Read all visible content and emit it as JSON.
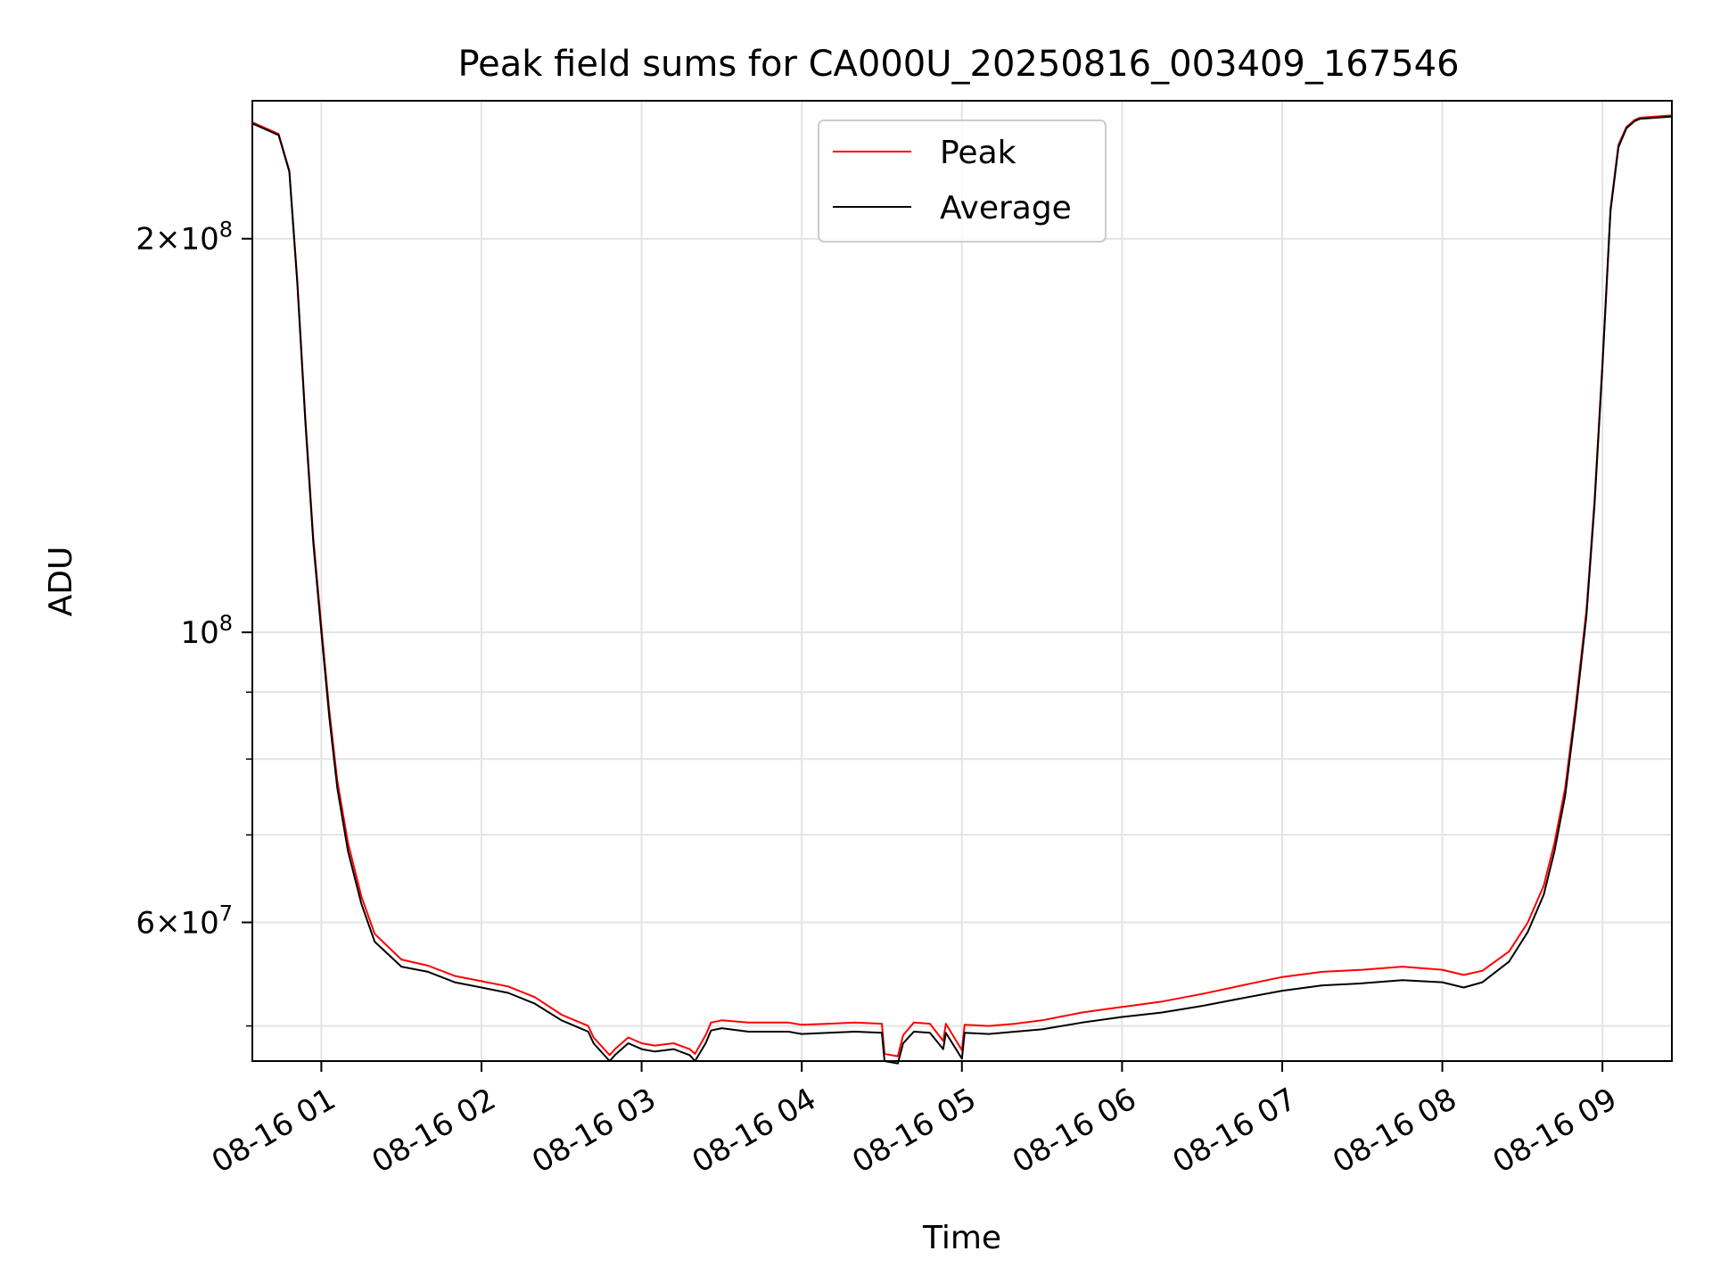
{
  "chart_data": {
    "type": "line",
    "title": "Peak field sums for CA000U_20250816_003409_167546",
    "xlabel": "Time",
    "ylabel": "ADU",
    "x_axis": {
      "type": "time",
      "range": [
        "2025-08-16T00:34:09",
        "2025-08-16T09:26:00"
      ],
      "ticks": [
        {
          "time": "2025-08-16T01:00",
          "label": "08-16 01"
        },
        {
          "time": "2025-08-16T02:00",
          "label": "08-16 02"
        },
        {
          "time": "2025-08-16T03:00",
          "label": "08-16 03"
        },
        {
          "time": "2025-08-16T04:00",
          "label": "08-16 04"
        },
        {
          "time": "2025-08-16T05:00",
          "label": "08-16 05"
        },
        {
          "time": "2025-08-16T06:00",
          "label": "08-16 06"
        },
        {
          "time": "2025-08-16T07:00",
          "label": "08-16 07"
        },
        {
          "time": "2025-08-16T08:00",
          "label": "08-16 08"
        },
        {
          "time": "2025-08-16T09:00",
          "label": "08-16 09"
        }
      ]
    },
    "y_axis": {
      "scale": "log",
      "range": [
        47000000,
        255000000
      ],
      "major_ticks": [
        {
          "value": 60000000,
          "mantissa": "6",
          "exponent": "7"
        },
        {
          "value": 100000000,
          "mantissa": "",
          "exponent": "8"
        },
        {
          "value": 200000000,
          "mantissa": "2",
          "exponent": "8"
        }
      ],
      "minor_ticks": [
        50000000,
        70000000,
        80000000,
        90000000,
        300000000
      ]
    },
    "grid": true,
    "legend": {
      "placement": "top-center",
      "entries": [
        {
          "label": "Peak",
          "color": "#ff0000"
        },
        {
          "label": "Average",
          "color": "#000000"
        }
      ]
    },
    "series": [
      {
        "name": "Average",
        "color": "#000000",
        "x": [
          "2025-08-16T00:34:09",
          "2025-08-16T00:44",
          "2025-08-16T00:48",
          "2025-08-16T00:51",
          "2025-08-16T00:54",
          "2025-08-16T00:57",
          "2025-08-16T01:00",
          "2025-08-16T01:03",
          "2025-08-16T01:06",
          "2025-08-16T01:10",
          "2025-08-16T01:15",
          "2025-08-16T01:20",
          "2025-08-16T01:30",
          "2025-08-16T01:40",
          "2025-08-16T01:50",
          "2025-08-16T02:00",
          "2025-08-16T02:10",
          "2025-08-16T02:20",
          "2025-08-16T02:30",
          "2025-08-16T02:40",
          "2025-08-16T02:42",
          "2025-08-16T02:48",
          "2025-08-16T02:50",
          "2025-08-16T02:55",
          "2025-08-16T03:00",
          "2025-08-16T03:05",
          "2025-08-16T03:12",
          "2025-08-16T03:18",
          "2025-08-16T03:20",
          "2025-08-16T03:24",
          "2025-08-16T03:26",
          "2025-08-16T03:30",
          "2025-08-16T03:40",
          "2025-08-16T03:55",
          "2025-08-16T04:00",
          "2025-08-16T04:10",
          "2025-08-16T04:20",
          "2025-08-16T04:30",
          "2025-08-16T04:31",
          "2025-08-16T04:36",
          "2025-08-16T04:38",
          "2025-08-16T04:42",
          "2025-08-16T04:48",
          "2025-08-16T04:53",
          "2025-08-16T04:54",
          "2025-08-16T05:00",
          "2025-08-16T05:01",
          "2025-08-16T05:10",
          "2025-08-16T05:20",
          "2025-08-16T05:30",
          "2025-08-16T05:45",
          "2025-08-16T06:00",
          "2025-08-16T06:15",
          "2025-08-16T06:30",
          "2025-08-16T06:45",
          "2025-08-16T07:00",
          "2025-08-16T07:15",
          "2025-08-16T07:30",
          "2025-08-16T07:45",
          "2025-08-16T08:00",
          "2025-08-16T08:08",
          "2025-08-16T08:15",
          "2025-08-16T08:25",
          "2025-08-16T08:32",
          "2025-08-16T08:38",
          "2025-08-16T08:42",
          "2025-08-16T08:46",
          "2025-08-16T08:50",
          "2025-08-16T08:54",
          "2025-08-16T08:57",
          "2025-08-16T09:00",
          "2025-08-16T09:03",
          "2025-08-16T09:06",
          "2025-08-16T09:09",
          "2025-08-16T09:12",
          "2025-08-16T09:14",
          "2025-08-16T09:26"
        ],
        "values": [
          245000000,
          240000000,
          225000000,
          185000000,
          145000000,
          117000000,
          100000000,
          86000000,
          76000000,
          68000000,
          62000000,
          58000000,
          55500000,
          55000000,
          54000000,
          53500000,
          53000000,
          52000000,
          50500000,
          49500000,
          48500000,
          47000000,
          47500000,
          48500000,
          48000000,
          47800000,
          48000000,
          47500000,
          47000000,
          48500000,
          49600000,
          49800000,
          49500000,
          49500000,
          49300000,
          49400000,
          49500000,
          49400000,
          47000000,
          46800000,
          48500000,
          49500000,
          49400000,
          48000000,
          49400000,
          47200000,
          49400000,
          49300000,
          49500000,
          49700000,
          50300000,
          50800000,
          51200000,
          51800000,
          52500000,
          53200000,
          53700000,
          53900000,
          54200000,
          54000000,
          53500000,
          54000000,
          56000000,
          59000000,
          63000000,
          68000000,
          75000000,
          87000000,
          103000000,
          125000000,
          160000000,
          210000000,
          235000000,
          243000000,
          246000000,
          247000000,
          248000000
        ]
      },
      {
        "name": "Peak",
        "color": "#ff0000",
        "x": [
          "2025-08-16T00:34:09",
          "2025-08-16T00:44",
          "2025-08-16T00:48",
          "2025-08-16T00:51",
          "2025-08-16T00:54",
          "2025-08-16T00:57",
          "2025-08-16T01:00",
          "2025-08-16T01:03",
          "2025-08-16T01:06",
          "2025-08-16T01:10",
          "2025-08-16T01:15",
          "2025-08-16T01:20",
          "2025-08-16T01:30",
          "2025-08-16T01:40",
          "2025-08-16T01:50",
          "2025-08-16T02:00",
          "2025-08-16T02:10",
          "2025-08-16T02:20",
          "2025-08-16T02:30",
          "2025-08-16T02:40",
          "2025-08-16T02:42",
          "2025-08-16T02:48",
          "2025-08-16T02:50",
          "2025-08-16T02:55",
          "2025-08-16T03:00",
          "2025-08-16T03:05",
          "2025-08-16T03:12",
          "2025-08-16T03:18",
          "2025-08-16T03:20",
          "2025-08-16T03:24",
          "2025-08-16T03:26",
          "2025-08-16T03:30",
          "2025-08-16T03:40",
          "2025-08-16T03:55",
          "2025-08-16T04:00",
          "2025-08-16T04:10",
          "2025-08-16T04:20",
          "2025-08-16T04:30",
          "2025-08-16T04:31",
          "2025-08-16T04:36",
          "2025-08-16T04:38",
          "2025-08-16T04:42",
          "2025-08-16T04:48",
          "2025-08-16T04:53",
          "2025-08-16T04:54",
          "2025-08-16T05:00",
          "2025-08-16T05:01",
          "2025-08-16T05:10",
          "2025-08-16T05:20",
          "2025-08-16T05:30",
          "2025-08-16T05:45",
          "2025-08-16T06:00",
          "2025-08-16T06:15",
          "2025-08-16T06:30",
          "2025-08-16T06:45",
          "2025-08-16T07:00",
          "2025-08-16T07:15",
          "2025-08-16T07:30",
          "2025-08-16T07:45",
          "2025-08-16T08:00",
          "2025-08-16T08:08",
          "2025-08-16T08:15",
          "2025-08-16T08:25",
          "2025-08-16T08:32",
          "2025-08-16T08:38",
          "2025-08-16T08:42",
          "2025-08-16T08:46",
          "2025-08-16T08:50",
          "2025-08-16T08:54",
          "2025-08-16T08:57",
          "2025-08-16T09:00",
          "2025-08-16T09:03",
          "2025-08-16T09:06",
          "2025-08-16T09:09",
          "2025-08-16T09:12",
          "2025-08-16T09:14",
          "2025-08-16T09:26"
        ],
        "values": [
          245500000,
          240500000,
          225500000,
          186000000,
          146000000,
          118000000,
          101000000,
          87000000,
          77000000,
          69000000,
          62800000,
          58800000,
          56200000,
          55600000,
          54600000,
          54100000,
          53600000,
          52600000,
          51000000,
          50000000,
          49000000,
          47500000,
          48000000,
          49000000,
          48500000,
          48300000,
          48500000,
          48000000,
          47600000,
          49200000,
          50300000,
          50500000,
          50300000,
          50300000,
          50100000,
          50200000,
          50300000,
          50200000,
          47600000,
          47400000,
          49200000,
          50300000,
          50200000,
          48700000,
          50200000,
          47900000,
          50100000,
          50000000,
          50200000,
          50500000,
          51200000,
          51700000,
          52200000,
          52900000,
          53700000,
          54500000,
          55000000,
          55200000,
          55500000,
          55200000,
          54700000,
          55100000,
          57000000,
          60000000,
          64000000,
          69000000,
          76000000,
          88000000,
          104000000,
          126000000,
          161000000,
          211000000,
          236000000,
          243500000,
          246500000,
          247500000,
          248500000
        ]
      }
    ]
  }
}
